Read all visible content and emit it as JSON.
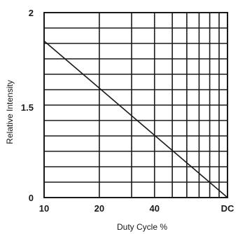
{
  "chart_data": {
    "type": "line",
    "xlabel": "Duty Cycle %",
    "ylabel": "Relative Intensity",
    "x_ticks": [
      {
        "value": 10,
        "label": "10"
      },
      {
        "value": 20,
        "label": "20"
      },
      {
        "value": 40,
        "label": "40"
      },
      {
        "value": 100,
        "label": "DC"
      }
    ],
    "y_ticks": [
      {
        "value": 0,
        "label": "0"
      },
      {
        "value": 1.5,
        "label": "1.5"
      },
      {
        "value": 2,
        "label": "2"
      }
    ],
    "x_scale": "log",
    "xlim": [
      10,
      100
    ],
    "series": [
      {
        "x": [
          10,
          100
        ],
        "y": [
          1.85,
          0
        ]
      }
    ],
    "grid": true,
    "legend": "none",
    "line_color": "#1a1a1a"
  }
}
